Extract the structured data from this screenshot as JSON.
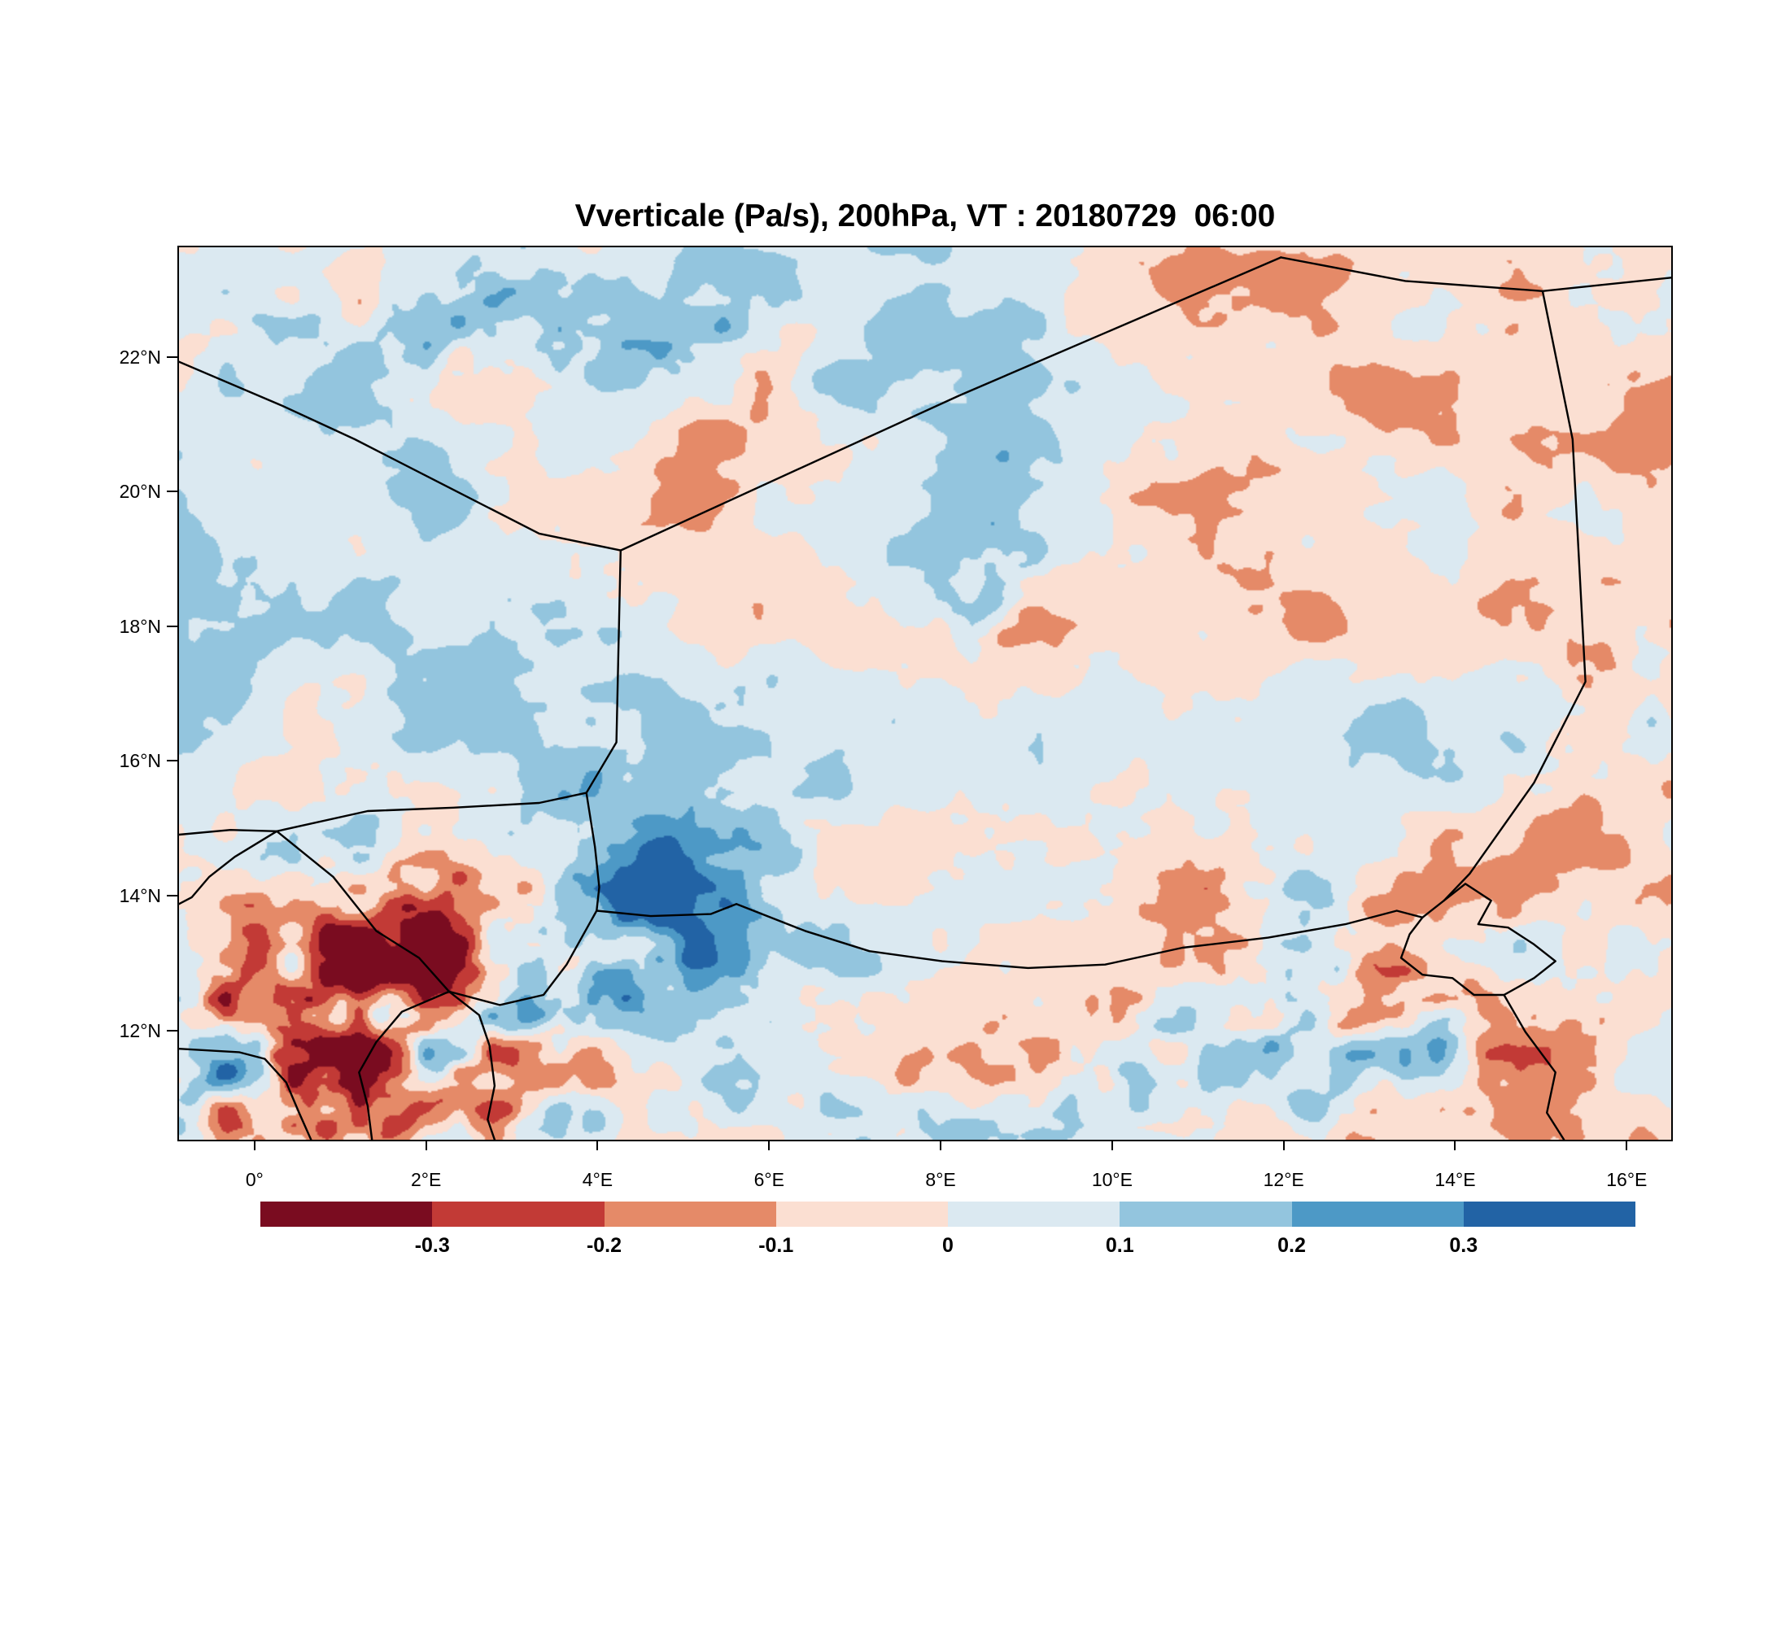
{
  "title": "Vverticale (Pa/s), 200hPa, VT : 20180729  06:00",
  "chart_data": {
    "type": "heatmap",
    "title": "Vverticale (Pa/s), 200hPa, VT : 20180729  06:00",
    "variable": "Vverticale",
    "units": "Pa/s",
    "pressure_level": "200hPa",
    "valid_time_label": "VT : 20180729  06:00",
    "x_axis": {
      "tick_labels": [
        "0°",
        "2°E",
        "4°E",
        "6°E",
        "8°E",
        "10°E",
        "12°E",
        "14°E",
        "16°E"
      ],
      "tick_lons": [
        0,
        2,
        4,
        6,
        8,
        10,
        12,
        14,
        16
      ],
      "lon_range": [
        -0.9,
        16.5
      ]
    },
    "y_axis": {
      "tick_labels": [
        "22°N",
        "20°N",
        "18°N",
        "16°N",
        "14°N",
        "12°N"
      ],
      "tick_lats": [
        22,
        20,
        18,
        16,
        14,
        12
      ],
      "lat_range": [
        10.4,
        23.65
      ]
    },
    "colorbar": {
      "levels": [
        -0.3,
        -0.2,
        -0.1,
        0,
        0.1,
        0.2,
        0.3
      ],
      "boundary_labels": [
        "-0.3",
        "-0.2",
        "-0.1",
        "0",
        "0.1",
        "0.2",
        "0.3"
      ],
      "colors": [
        "#7a0c20",
        "#c23a36",
        "#e58a68",
        "#fbdfd2",
        "#dbe9f1",
        "#93c5de",
        "#4d99c6",
        "#2263a5"
      ]
    },
    "borders": [
      {
        "name": "algeria-mali",
        "points": [
          [
            -0.9,
            21.95
          ],
          [
            0.3,
            21.3
          ],
          [
            1.15,
            20.8
          ],
          [
            2.3,
            20.05
          ],
          [
            3.3,
            19.4
          ],
          [
            4.25,
            19.15
          ]
        ]
      },
      {
        "name": "algeria-niger",
        "points": [
          [
            4.25,
            19.15
          ],
          [
            8.2,
            21.45
          ],
          [
            11.95,
            23.5
          ]
        ]
      },
      {
        "name": "libya-north",
        "points": [
          [
            11.95,
            23.5
          ],
          [
            13.4,
            23.15
          ],
          [
            15.0,
            23.0
          ],
          [
            16.5,
            23.2
          ]
        ]
      },
      {
        "name": "niger-chad",
        "points": [
          [
            15.0,
            23.0
          ],
          [
            15.35,
            20.8
          ],
          [
            15.5,
            17.2
          ],
          [
            14.9,
            15.7
          ],
          [
            14.15,
            14.35
          ],
          [
            13.85,
            13.95
          ]
        ]
      },
      {
        "name": "mali-niger-east",
        "points": [
          [
            4.25,
            19.15
          ],
          [
            4.2,
            16.3
          ],
          [
            3.85,
            15.55
          ]
        ]
      },
      {
        "name": "mali-niger-south",
        "points": [
          [
            3.85,
            15.55
          ],
          [
            3.3,
            15.4
          ],
          [
            2.3,
            15.33
          ],
          [
            1.3,
            15.28
          ],
          [
            0.24,
            14.98
          ],
          [
            -0.3,
            15.0
          ],
          [
            -0.9,
            14.93
          ]
        ]
      },
      {
        "name": "niger-burkina-east",
        "points": [
          [
            3.85,
            15.55
          ],
          [
            3.95,
            14.75
          ],
          [
            4.0,
            14.15
          ],
          [
            3.97,
            13.8
          ]
        ]
      },
      {
        "name": "niger-nigeria",
        "points": [
          [
            3.97,
            13.8
          ],
          [
            4.6,
            13.72
          ],
          [
            5.3,
            13.75
          ],
          [
            5.6,
            13.9
          ],
          [
            6.4,
            13.5
          ],
          [
            7.15,
            13.2
          ],
          [
            8.0,
            13.05
          ],
          [
            9.0,
            12.95
          ],
          [
            9.9,
            13.0
          ],
          [
            10.8,
            13.25
          ],
          [
            11.8,
            13.4
          ],
          [
            12.7,
            13.6
          ],
          [
            13.3,
            13.8
          ],
          [
            13.6,
            13.7
          ]
        ]
      },
      {
        "name": "lake-chad",
        "points": [
          [
            13.85,
            13.95
          ],
          [
            14.1,
            14.2
          ],
          [
            14.4,
            13.95
          ],
          [
            14.25,
            13.6
          ],
          [
            14.6,
            13.55
          ],
          [
            14.9,
            13.3
          ],
          [
            15.15,
            13.05
          ],
          [
            14.9,
            12.8
          ],
          [
            14.55,
            12.55
          ],
          [
            14.2,
            12.55
          ],
          [
            13.95,
            12.8
          ],
          [
            13.6,
            12.85
          ],
          [
            13.35,
            13.1
          ],
          [
            13.45,
            13.45
          ],
          [
            13.6,
            13.7
          ],
          [
            13.85,
            13.95
          ]
        ]
      },
      {
        "name": "chad-cameroon",
        "points": [
          [
            14.55,
            12.55
          ],
          [
            14.8,
            12.0
          ],
          [
            15.15,
            11.4
          ],
          [
            15.05,
            10.8
          ],
          [
            15.25,
            10.4
          ]
        ]
      },
      {
        "name": "burkina-togo",
        "points": [
          [
            -0.9,
            11.75
          ],
          [
            -0.2,
            11.7
          ],
          [
            0.1,
            11.6
          ],
          [
            0.35,
            11.25
          ],
          [
            0.5,
            10.8
          ],
          [
            0.64,
            10.4
          ]
        ]
      },
      {
        "name": "benin-burkina",
        "points": [
          [
            2.25,
            12.6
          ],
          [
            1.7,
            12.3
          ],
          [
            1.4,
            11.85
          ],
          [
            1.2,
            11.4
          ],
          [
            1.3,
            10.9
          ],
          [
            1.35,
            10.4
          ]
        ]
      },
      {
        "name": "benin-nigeria",
        "points": [
          [
            2.25,
            12.6
          ],
          [
            2.6,
            12.25
          ],
          [
            2.72,
            11.8
          ],
          [
            2.78,
            11.2
          ],
          [
            2.7,
            10.7
          ],
          [
            2.78,
            10.4
          ]
        ]
      },
      {
        "name": "niger-benin",
        "points": [
          [
            3.97,
            13.8
          ],
          [
            3.62,
            13.0
          ],
          [
            3.35,
            12.55
          ],
          [
            2.84,
            12.4
          ],
          [
            2.25,
            12.6
          ]
        ]
      },
      {
        "name": "burkina-niger",
        "points": [
          [
            0.24,
            14.98
          ],
          [
            0.9,
            14.3
          ],
          [
            1.4,
            13.5
          ],
          [
            1.9,
            13.1
          ],
          [
            2.25,
            12.6
          ]
        ]
      },
      {
        "name": "mali-burkina",
        "points": [
          [
            0.24,
            14.98
          ],
          [
            -0.25,
            14.6
          ],
          [
            -0.55,
            14.3
          ],
          [
            -0.75,
            14.0
          ],
          [
            -0.9,
            13.9
          ]
        ]
      }
    ],
    "render_hints": {
      "seed": 20180729,
      "base_amp": 0.26,
      "octaves": [
        {
          "fx": 5,
          "fy": 4,
          "w": 0.42,
          "s": 11
        },
        {
          "fx": 11,
          "fy": 8,
          "w": 0.3,
          "s": 22
        },
        {
          "fx": 22,
          "fy": 16,
          "w": 0.22,
          "s": 33
        },
        {
          "fx": 44,
          "fy": 32,
          "w": 0.15,
          "s": 44
        },
        {
          "fx": 90,
          "fy": 64,
          "w": 0.09,
          "s": 55
        }
      ],
      "hotspots": [
        {
          "u": 0.05,
          "v": 0.87,
          "ru": 0.1,
          "rv": 0.09,
          "boost": 0.5
        },
        {
          "u": 0.15,
          "v": 0.78,
          "ru": 0.08,
          "rv": 0.09,
          "boost": 0.42
        },
        {
          "u": 0.12,
          "v": 0.95,
          "ru": 0.1,
          "rv": 0.06,
          "boost": 0.38
        },
        {
          "u": 0.34,
          "v": 0.73,
          "ru": 0.05,
          "rv": 0.08,
          "boost": 0.5
        },
        {
          "u": 0.26,
          "v": 0.82,
          "ru": 0.06,
          "rv": 0.08,
          "boost": 0.3
        },
        {
          "u": 0.8,
          "v": 0.86,
          "ru": 0.08,
          "rv": 0.07,
          "boost": 0.48
        },
        {
          "u": 0.71,
          "v": 0.72,
          "ru": 0.035,
          "rv": 0.035,
          "boost": 0.32
        },
        {
          "u": 0.545,
          "v": 0.4,
          "ru": 0.028,
          "rv": 0.05,
          "boost": 0.38
        },
        {
          "u": 0.22,
          "v": 0.09,
          "ru": 0.11,
          "rv": 0.05,
          "boost": 0.28
        },
        {
          "u": 0.36,
          "v": 0.13,
          "ru": 0.09,
          "rv": 0.05,
          "boost": 0.22
        },
        {
          "u": 0.965,
          "v": 0.55,
          "ru": 0.04,
          "rv": 0.12,
          "boost": 0.22
        },
        {
          "u": 0.6,
          "v": 0.93,
          "ru": 0.09,
          "rv": 0.06,
          "boost": 0.2
        },
        {
          "u": 0.45,
          "v": 0.97,
          "ru": 0.35,
          "rv": 0.07,
          "boost": 0.1
        }
      ]
    }
  }
}
